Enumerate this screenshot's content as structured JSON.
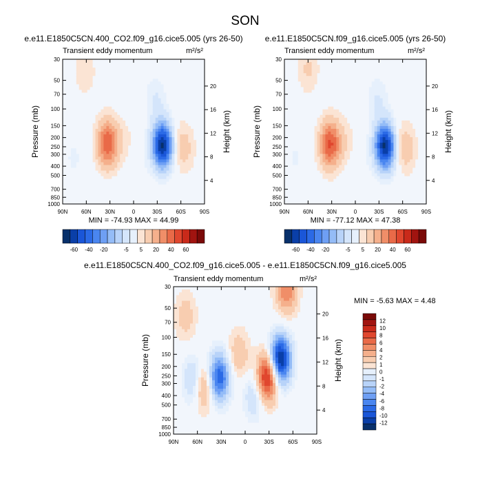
{
  "page_title": "SON",
  "colors": {
    "negative": [
      "#08306b",
      "#0a3fa8",
      "#1a56d8",
      "#2b6ae6",
      "#4a86f0",
      "#6e9ff4",
      "#94bcf7",
      "#b8d3f9",
      "#d4e5fb",
      "#e6f0fc"
    ],
    "positive": [
      "#fbe4d4",
      "#f8cdb0",
      "#f5b08c",
      "#f08e68",
      "#e96a48",
      "#e0472e",
      "#c92a1a",
      "#a11410",
      "#7a0a08"
    ],
    "neutral": "#f2f6fc"
  },
  "chart_data": [
    {
      "type": "heatmap",
      "subtype": "filled-contour",
      "title": "e.e11.E1850C5CN.400_CO2.f09_g16.cice5.005 (yrs 26-50)",
      "left_label": "Transient eddy momentum",
      "units": "m²/s²",
      "xlabel": "",
      "ylabel": "Pressure (mb)",
      "y2label": "Height (km)",
      "x_ticks": [
        "90N",
        "60N",
        "30N",
        "0",
        "30S",
        "60S",
        "90S"
      ],
      "y_ticks": [
        "30",
        "50",
        "70",
        "100",
        "150",
        "200",
        "250",
        "300",
        "400",
        "500",
        "700",
        "850",
        "1000"
      ],
      "y2_ticks": [
        "20",
        "16",
        "12",
        "8",
        "4"
      ],
      "min": -74.93,
      "max": 44.99,
      "stats": "MIN = -74.93   MAX =  44.99",
      "colorbar_labels": [
        "-60",
        "-40",
        "-20",
        "-5",
        "5",
        "20",
        "40",
        "60"
      ],
      "features": [
        {
          "lat": 33,
          "p": 230,
          "value": 42
        },
        {
          "lat": 62,
          "p": 40,
          "value": 8
        },
        {
          "lat": 76,
          "p": 330,
          "value": -4
        },
        {
          "lat": 12,
          "p": 220,
          "value": 5
        },
        {
          "lat": -37,
          "p": 240,
          "value": -72
        },
        {
          "lat": -28,
          "p": 80,
          "value": -8
        },
        {
          "lat": -64,
          "p": 260,
          "value": 12
        },
        {
          "lat": -50,
          "p": 200,
          "value": 5
        },
        {
          "lat": -5,
          "p": 400,
          "value": -3
        }
      ]
    },
    {
      "type": "heatmap",
      "subtype": "filled-contour",
      "title": "e.e11.E1850C5CN.f09_g16.cice5.005 (yrs 26-50)",
      "left_label": "Transient eddy momentum",
      "units": "m²/s²",
      "xlabel": "",
      "ylabel": "Pressure (mb)",
      "y2label": "Height (km)",
      "x_ticks": [
        "90N",
        "60N",
        "30N",
        "0",
        "30S",
        "60S",
        "90S"
      ],
      "y_ticks": [
        "30",
        "50",
        "70",
        "100",
        "150",
        "200",
        "250",
        "300",
        "400",
        "500",
        "700",
        "850",
        "1000"
      ],
      "y2_ticks": [
        "20",
        "16",
        "12",
        "8",
        "4"
      ],
      "min": -77.12,
      "max": 47.38,
      "stats": "MIN = -77.12   MAX =  47.38",
      "colorbar_labels": [
        "-60",
        "-40",
        "-20",
        "-5",
        "5",
        "20",
        "40",
        "60"
      ],
      "features": [
        {
          "lat": 32,
          "p": 235,
          "value": 45
        },
        {
          "lat": 60,
          "p": 38,
          "value": 10
        },
        {
          "lat": 76,
          "p": 330,
          "value": -4
        },
        {
          "lat": 12,
          "p": 220,
          "value": 6
        },
        {
          "lat": -38,
          "p": 245,
          "value": -75
        },
        {
          "lat": -28,
          "p": 80,
          "value": -8
        },
        {
          "lat": -64,
          "p": 265,
          "value": 14
        },
        {
          "lat": -50,
          "p": 200,
          "value": 6
        },
        {
          "lat": -5,
          "p": 400,
          "value": -3
        }
      ]
    },
    {
      "type": "heatmap",
      "subtype": "filled-contour",
      "title": "e.e11.E1850C5CN.400_CO2.f09_g16.cice5.005 - e.e11.E1850C5CN.f09_g16.cice5.005",
      "left_label": "Transient eddy momentum",
      "units": "m²/s²",
      "xlabel": "",
      "ylabel": "Pressure (mb)",
      "y2label": "Height (km)",
      "x_ticks": [
        "90N",
        "60N",
        "30N",
        "0",
        "30S",
        "60S",
        "90S"
      ],
      "y_ticks": [
        "30",
        "50",
        "70",
        "100",
        "150",
        "200",
        "250",
        "300",
        "400",
        "500",
        "700",
        "850",
        "1000"
      ],
      "y2_ticks": [
        "20",
        "16",
        "12",
        "8",
        "4"
      ],
      "min": -5.63,
      "max": 4.48,
      "stats": "MIN = -5.63   MAX =  4.48",
      "colorbar_labels": [
        "12",
        "10",
        "8",
        "6",
        "4",
        "2",
        "1",
        "0",
        "-1",
        "-2",
        "-4",
        "-6",
        "-8",
        "-10",
        "-12"
      ],
      "features": [
        {
          "lat": 33,
          "p": 260,
          "value": -4
        },
        {
          "lat": -28,
          "p": 260,
          "value": 4.5
        },
        {
          "lat": -44,
          "p": 170,
          "value": -5.6
        },
        {
          "lat": -52,
          "p": 32,
          "value": 2.5
        },
        {
          "lat": 52,
          "p": 320,
          "value": 2
        },
        {
          "lat": 64,
          "p": 280,
          "value": -1.5
        },
        {
          "lat": 8,
          "p": 150,
          "value": 1.2
        },
        {
          "lat": -12,
          "p": 400,
          "value": -1.2
        },
        {
          "lat": 75,
          "p": 60,
          "value": 1
        }
      ]
    }
  ]
}
